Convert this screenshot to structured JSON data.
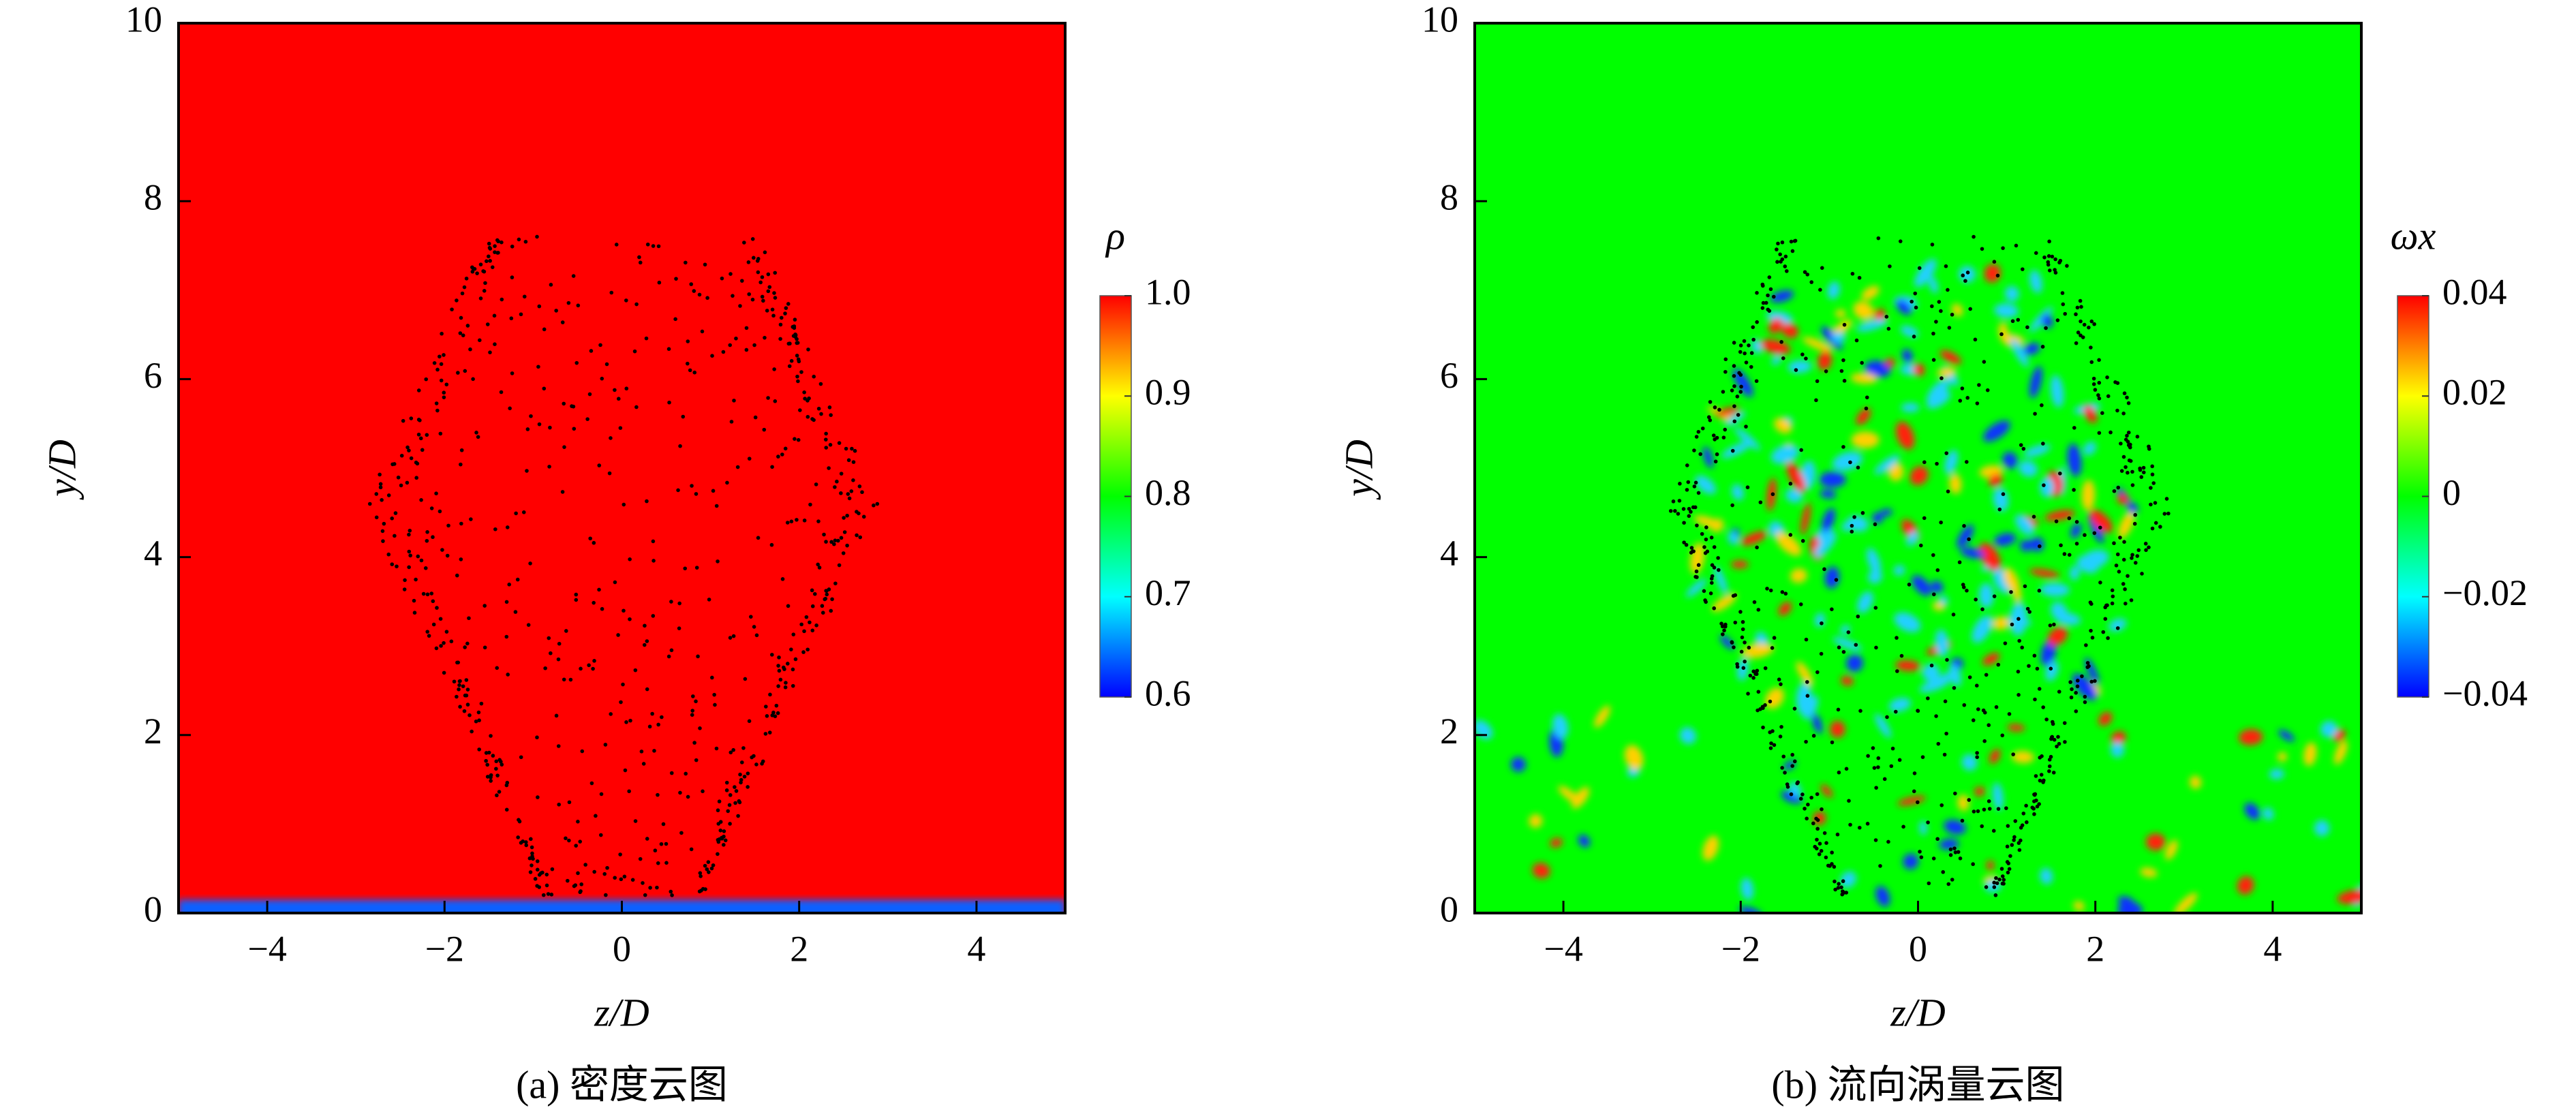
{
  "chart_data": [
    {
      "type": "contour",
      "caption": "(a) 密度云图",
      "xlabel": "z/D",
      "ylabel": "y/D",
      "xlim": [
        -5,
        5
      ],
      "ylim": [
        0,
        10
      ],
      "xticks": [
        {
          "value": -4,
          "label": "−4"
        },
        {
          "value": -2,
          "label": "−2"
        },
        0,
        2,
        4
      ],
      "yticks": [
        0,
        2,
        4,
        6,
        8,
        10
      ],
      "colorbar": {
        "label": "ρ",
        "clim": [
          0.6,
          1.0
        ],
        "ticks": [
          0.6,
          0.7,
          0.8,
          0.9,
          {
            "value": 1,
            "label": "1.0"
          }
        ],
        "colormap": [
          "#0000ff",
          "#00ffff",
          "#00ff00",
          "#ffff00",
          "#ff0000"
        ]
      }
    },
    {
      "type": "contour",
      "caption": "(b) 流向涡量云图",
      "xlabel": "z/D",
      "ylabel": "y/D",
      "xlim": [
        -5,
        5
      ],
      "ylim": [
        0,
        10
      ],
      "xticks": [
        {
          "value": -4,
          "label": "−4"
        },
        {
          "value": -2,
          "label": "−2"
        },
        0,
        2,
        4
      ],
      "yticks": [
        0,
        2,
        4,
        6,
        8,
        10
      ],
      "colorbar": {
        "label": "ωx",
        "clim": [
          -0.04,
          0.04
        ],
        "ticks": [
          {
            "value": -0.04,
            "label": "−0.04"
          },
          {
            "value": -0.02,
            "label": "−0.02"
          },
          0,
          0.02,
          0.04
        ],
        "colormap": [
          "#0000ff",
          "#00ffff",
          "#00ff00",
          "#ffff00",
          "#ff0000"
        ]
      }
    }
  ]
}
